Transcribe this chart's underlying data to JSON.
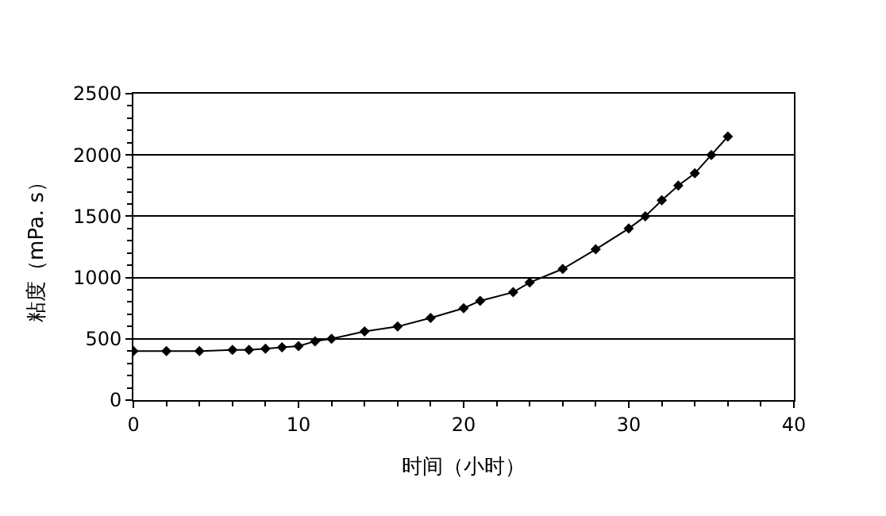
{
  "chart_data": {
    "type": "line",
    "xlabel": "时间（小时）",
    "ylabel": "粘度（mPa. s）",
    "x": [
      0,
      2,
      4,
      6,
      7,
      8,
      9,
      10,
      11,
      12,
      14,
      16,
      18,
      20,
      21,
      23,
      24,
      26,
      28,
      30,
      31,
      32,
      33,
      34,
      35,
      36
    ],
    "series": [
      {
        "color": "#000000",
        "values": [
          400,
          400,
          400,
          410,
          410,
          420,
          430,
          440,
          480,
          500,
          560,
          600,
          670,
          750,
          810,
          880,
          960,
          1070,
          1230,
          1400,
          1500,
          1630,
          1750,
          1850,
          2000,
          2150
        ]
      }
    ],
    "xlim": [
      0,
      40
    ],
    "xticks": [
      0,
      10,
      20,
      30,
      40
    ],
    "ylim": [
      0,
      2500
    ],
    "yticks": [
      0,
      500,
      1000,
      1500,
      2000,
      2500
    ],
    "grid": "y",
    "marker": "diamond",
    "line_style": "solid"
  }
}
